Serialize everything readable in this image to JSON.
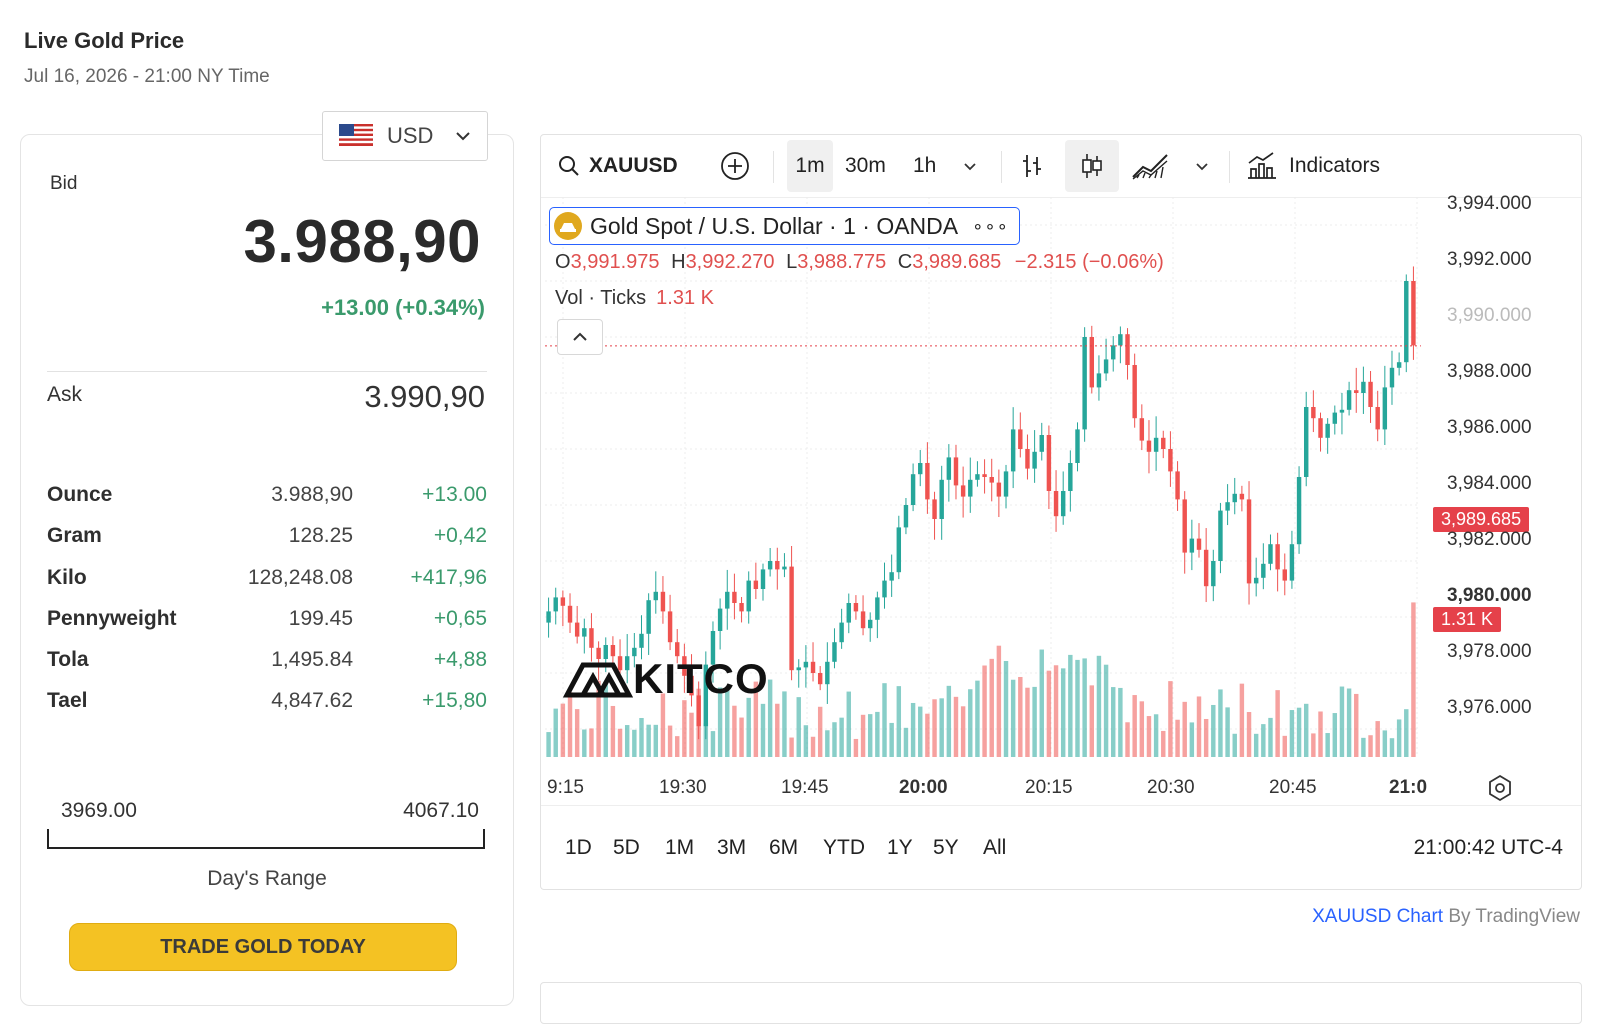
{
  "header": {
    "title": "Live Gold Price",
    "subtitle": "Jul 16, 2026 - 21:00 NY Time"
  },
  "currency": {
    "selected": "USD"
  },
  "bid": {
    "label": "Bid",
    "value": "3.988,90",
    "change": "+13.00 (+0.34%)"
  },
  "ask": {
    "label": "Ask",
    "value": "3.990,90"
  },
  "units": [
    {
      "name": "Ounce",
      "value": "3.988,90",
      "change": "+13.00"
    },
    {
      "name": "Gram",
      "value": "128.25",
      "change": "+0,42"
    },
    {
      "name": "Kilo",
      "value": "128,248.08",
      "change": "+417,96"
    },
    {
      "name": "Pennyweight",
      "value": "199.45",
      "change": "+0,65"
    },
    {
      "name": "Tola",
      "value": "1,495.84",
      "change": "+4,88"
    },
    {
      "name": "Tael",
      "value": "4,847.62",
      "change": "+15,80"
    }
  ],
  "day_range": {
    "low": "3969.00",
    "high": "4067.10",
    "label": "Day's Range"
  },
  "trade_button": "TRADE GOLD TODAY",
  "toolbar": {
    "symbol": "XAUUSD",
    "intervals": [
      "1m",
      "30m",
      "1h"
    ],
    "active_interval": "1m",
    "indicators_label": "Indicators"
  },
  "legend": {
    "title": "Gold Spot / U.S. Dollar · 1 · OANDA",
    "o_label": "O",
    "o": "3,991.975",
    "h_label": "H",
    "h": "3,992.270",
    "l_label": "L",
    "l": "3,988.775",
    "c_label": "C",
    "c": "3,989.685",
    "change": "−2.315 (−0.06%)",
    "vol_label": "Vol · Ticks",
    "vol_value": "1.31 K"
  },
  "watermark": "KITCO",
  "price_axis": [
    "3,994.000",
    "3,992.000",
    "3,988.000",
    "3,986.000",
    "3,984.000",
    "3,982.000",
    "3,980.000",
    "3,978.000",
    "3,976.000"
  ],
  "price_axis_obscured": "3,990.000",
  "current_price_tag": "3,989.685",
  "volume_tag": "1.31 K",
  "time_axis": [
    "9:15",
    "19:30",
    "19:45",
    "20:00",
    "20:15",
    "20:30",
    "20:45",
    "21:0"
  ],
  "range_buttons": [
    "1D",
    "5D",
    "1M",
    "3M",
    "6M",
    "YTD",
    "1Y",
    "5Y",
    "All"
  ],
  "clock": "21:00:42 UTC-4",
  "credit": {
    "link": "XAUUSD Chart",
    "by": "By TradingView"
  },
  "colors": {
    "up": "#26a69a",
    "down": "#ef5350",
    "accent": "#f4c223",
    "positive": "#3a9a6c",
    "brand_blue": "#2962ff"
  },
  "chart_data": {
    "type": "candlestick",
    "interval": "1m",
    "y_range": [
      3975,
      3995
    ],
    "x_range": [
      "19:15",
      "21:00"
    ],
    "last_close": 3989.685,
    "closes": [
      3980.2,
      3980.7,
      3980.4,
      3979.8,
      3979.3,
      3979.6,
      3978.9,
      3978.5,
      3979.0,
      3978.6,
      3978.1,
      3978.6,
      3978.9,
      3979.4,
      3980.6,
      3980.9,
      3980.2,
      3979.1,
      3978.6,
      3977.9,
      3977.2,
      3976.1,
      3978.3,
      3979.5,
      3980.3,
      3980.9,
      3980.5,
      3980.2,
      3981.3,
      3981.0,
      3981.7,
      3982.0,
      3981.7,
      3981.8,
      3978.1,
      3978.2,
      3978.4,
      3978.0,
      3977.6,
      3978.4,
      3979.1,
      3979.8,
      3980.5,
      3980.2,
      3979.6,
      3979.9,
      3980.7,
      3981.3,
      3981.6,
      3983.2,
      3984.0,
      3985.1,
      3985.5,
      3984.2,
      3983.5,
      3984.9,
      3985.7,
      3984.7,
      3984.3,
      3984.9,
      3985.1,
      3985.0,
      3984.8,
      3984.3,
      3985.2,
      3986.7,
      3986.0,
      3985.3,
      3985.9,
      3986.5,
      3984.5,
      3983.6,
      3984.5,
      3985.5,
      3986.7,
      3990.0,
      3988.2,
      3988.7,
      3989.2,
      3989.7,
      3990.1,
      3989.0,
      3987.1,
      3986.3,
      3985.9,
      3986.4,
      3986.0,
      3985.2,
      3984.2,
      3982.3,
      3982.8,
      3982.4,
      3981.1,
      3982.0,
      3983.8,
      3984.1,
      3984.4,
      3984.2,
      3981.2,
      3981.4,
      3981.9,
      3982.6,
      3981.7,
      3981.3,
      3982.6,
      3985.0,
      3987.5,
      3987.1,
      3986.4,
      3986.9,
      3987.3,
      3987.4,
      3988.1,
      3988.0,
      3988.4,
      3987.5,
      3986.7,
      3988.2,
      3988.9,
      3989.1,
      3992.0,
      3989.7
    ]
  }
}
